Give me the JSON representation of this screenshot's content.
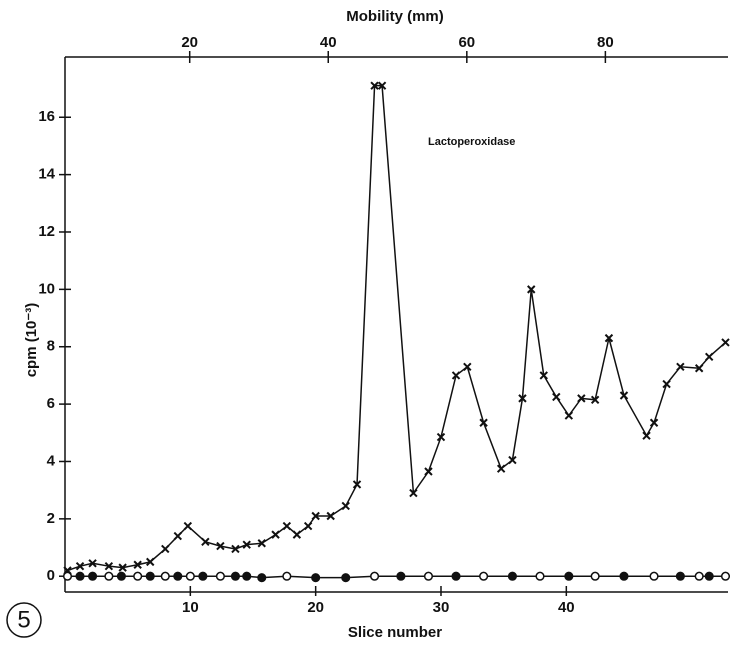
{
  "chart_data": {
    "type": "line",
    "figure_label": "5",
    "top_axis_label": "Mobility (mm)",
    "x_label": "Slice number",
    "y_label": "cpm (10⁻³)",
    "annotation": "Lactoperoxidase",
    "xlim": [
      0,
      52.9
    ],
    "xticks": [
      10,
      20,
      30,
      40
    ],
    "x2lim": [
      2,
      97.7
    ],
    "x2ticks": [
      20,
      40,
      60,
      80
    ],
    "ylim": [
      -0.55,
      18.1
    ],
    "yticks": [
      0,
      2,
      4,
      6,
      8,
      10,
      12,
      14,
      16
    ],
    "color": "#111111",
    "series": [
      {
        "marker": "cross",
        "x": [
          0.2,
          1.2,
          2.2,
          3.5,
          4.6,
          5.8,
          6.8,
          8.0,
          9.0,
          9.8,
          11.2,
          12.4,
          13.6,
          14.5,
          15.7,
          16.8,
          17.7,
          18.5,
          19.4,
          20.0,
          21.2,
          22.4,
          23.3,
          24.7,
          25.3,
          27.8,
          29.0,
          30.0,
          31.2,
          32.1,
          33.4,
          34.8,
          35.7,
          36.5,
          37.2,
          38.2,
          39.2,
          40.2,
          41.2,
          42.3,
          43.4,
          44.6,
          46.4,
          47.0,
          48.0,
          49.1,
          50.6,
          51.4,
          52.7
        ],
        "values": [
          0.2,
          0.35,
          0.45,
          0.35,
          0.3,
          0.4,
          0.5,
          0.95,
          1.4,
          1.75,
          1.2,
          1.05,
          0.95,
          1.1,
          1.15,
          1.45,
          1.75,
          1.45,
          1.75,
          2.1,
          2.1,
          2.45,
          3.2,
          17.1,
          17.1,
          2.9,
          3.65,
          4.85,
          7.0,
          7.3,
          5.35,
          3.75,
          4.05,
          6.2,
          10.0,
          7.0,
          6.25,
          5.6,
          6.2,
          6.15,
          8.3,
          6.3,
          4.9,
          5.35,
          6.7,
          7.3,
          7.25,
          7.65,
          8.15
        ]
      },
      {
        "marker": "circle",
        "x": [
          0.2,
          1.2,
          2.2,
          3.5,
          4.5,
          5.8,
          6.8,
          8.0,
          9.0,
          10.0,
          11.0,
          12.4,
          13.6,
          14.5,
          15.7,
          17.7,
          20.0,
          22.4,
          24.7,
          26.8,
          29.0,
          31.2,
          33.4,
          35.7,
          37.9,
          40.2,
          42.3,
          44.6,
          47.0,
          49.1,
          50.6,
          51.4,
          52.7
        ],
        "filled": [
          false,
          true,
          true,
          false,
          true,
          false,
          true,
          false,
          true,
          false,
          true,
          false,
          true,
          true,
          true,
          false,
          true,
          true,
          false,
          true,
          false,
          true,
          false,
          true,
          false,
          true,
          false,
          true,
          false,
          true,
          false,
          true,
          false
        ],
        "values": [
          0,
          0,
          0,
          0,
          0,
          0,
          0,
          0,
          0,
          0,
          0,
          0,
          0,
          0,
          -0.05,
          0,
          -0.05,
          -0.05,
          0,
          0,
          0,
          0,
          0,
          0,
          0,
          0,
          0,
          0,
          0,
          0,
          0,
          0,
          0
        ]
      }
    ]
  }
}
